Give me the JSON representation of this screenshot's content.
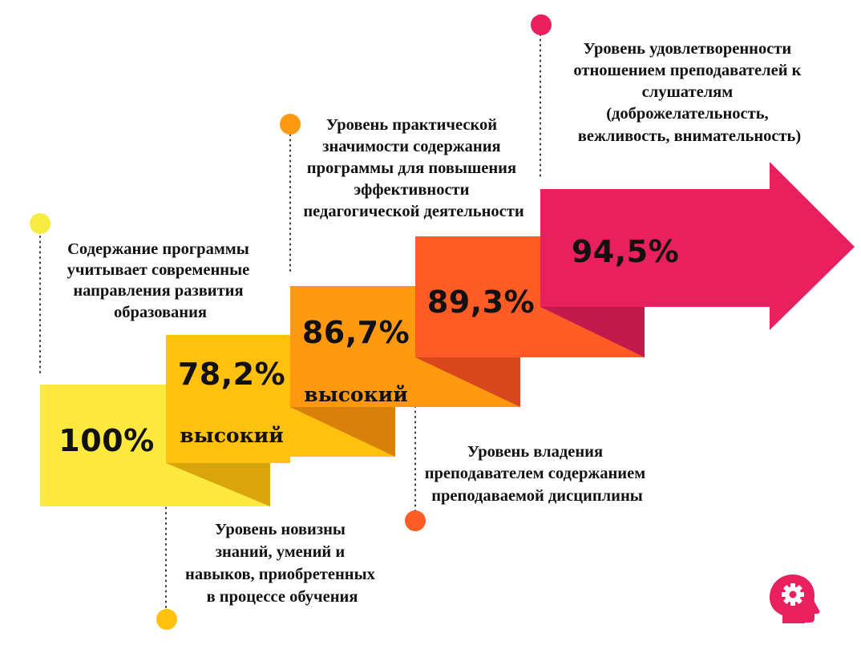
{
  "steps": [
    {
      "value": "100%",
      "fraction": 1.0,
      "color": "#FFE93F"
    },
    {
      "value": "78,2%",
      "fraction": 0.782,
      "level": "высокий",
      "color": "#FFC10E",
      "shade": "#D9A40C"
    },
    {
      "value": "86,7%",
      "fraction": 0.867,
      "level": "высокий",
      "color": "#FF9A10",
      "shade": "#D97F0C"
    },
    {
      "value": "89,3%",
      "fraction": 0.893,
      "color": "#FF5B25",
      "shade": "#D9481C"
    },
    {
      "value": "94,5%",
      "fraction": 0.945,
      "color": "#E8205E",
      "shade": "#C31A4D"
    }
  ],
  "captions": [
    {
      "lines": [
        "Содержание программы",
        "учитывает современные",
        "направления развития",
        "образования"
      ],
      "dot_color": "#F7EC44"
    },
    {
      "lines": [
        "Уровень новизны",
        "знаний, умений и",
        "навыков, приобретенных",
        "в процессе обучения"
      ],
      "dot_color": "#FFC10E"
    },
    {
      "lines": [
        "Уровень практической",
        "значимости содержания",
        "программы для повышения",
        "эффективности",
        "педагогической деятельности"
      ],
      "dot_color": "#FF9A10"
    },
    {
      "lines": [
        "Уровень владения",
        "преподавателем содержанием",
        "преподаваемой дисциплины"
      ],
      "dot_color": "#FF5B25"
    },
    {
      "lines": [
        "Уровень удовлетворенности",
        "отношением преподавателей к",
        "слушателям",
        "(доброжелательность,",
        "вежливость, внимательность)"
      ],
      "dot_color": "#E8205E"
    }
  ],
  "icon": {
    "name": "head-gear-icon",
    "color": "#E8205E"
  }
}
